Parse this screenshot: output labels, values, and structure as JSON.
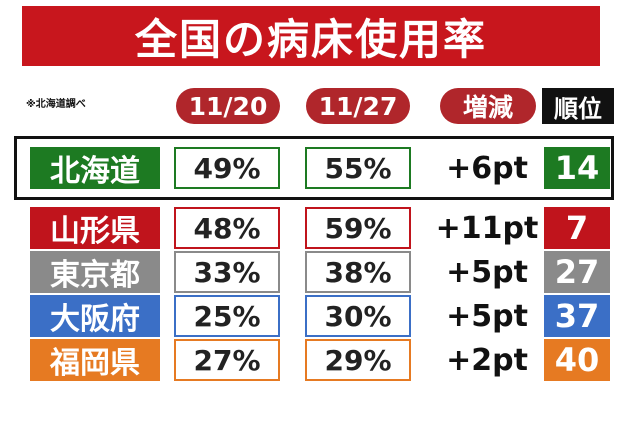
{
  "header": {
    "title": "全国の病床使用率",
    "note": "※北海道調べ"
  },
  "table": {
    "columns": [
      "11/20",
      "11/27",
      "増減",
      "順位"
    ],
    "rows": [
      [
        "北海道",
        "49%",
        "55%",
        "+6pt",
        "14"
      ],
      [
        "山形県",
        "48%",
        "59%",
        "+11pt",
        "7"
      ],
      [
        "東京都",
        "33%",
        "38%",
        "+5pt",
        "27"
      ],
      [
        "大阪府",
        "25%",
        "30%",
        "+5pt",
        "37"
      ],
      [
        "福岡県",
        "27%",
        "29%",
        "+2pt",
        "40"
      ]
    ]
  }
}
